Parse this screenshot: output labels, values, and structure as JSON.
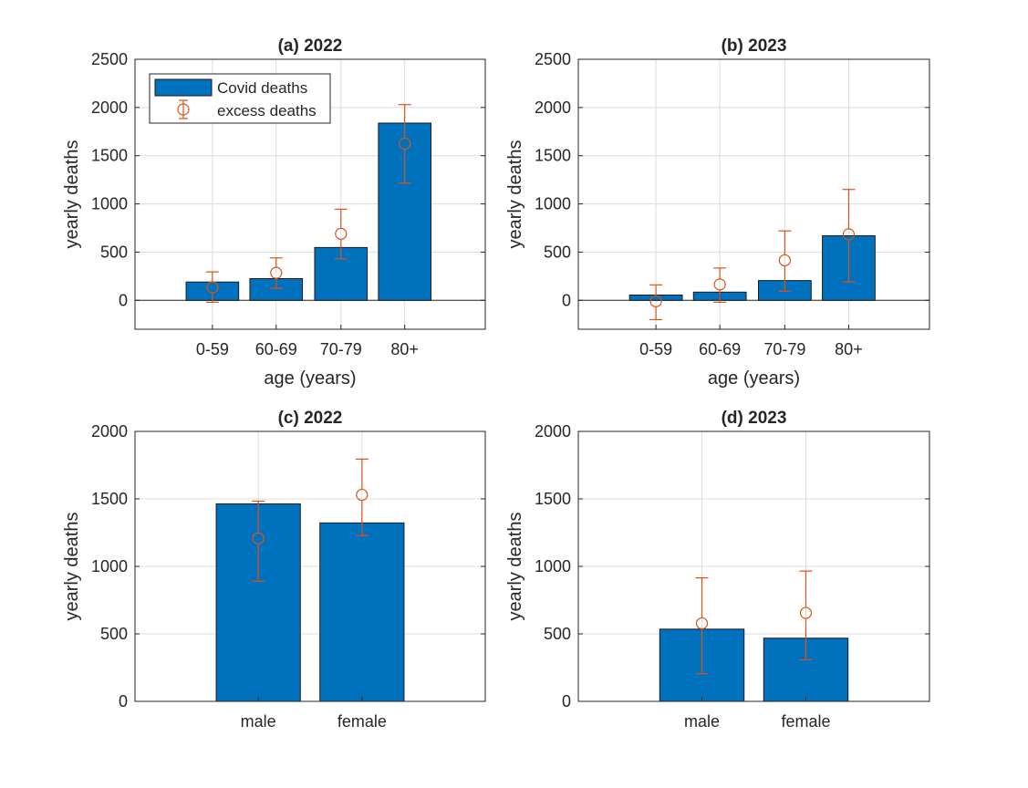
{
  "colors": {
    "bar": "#0072bd",
    "error": "#d95319"
  },
  "legend": {
    "bar_label": "Covid deaths",
    "error_label": "excess deaths",
    "placement": "top-left"
  },
  "chart_data": [
    {
      "type": "bar",
      "title": "(a) 2022",
      "xlabel": "age (years)",
      "ylabel": "yearly deaths",
      "categories": [
        "0-59",
        "60-69",
        "70-79",
        "80+"
      ],
      "ylim": [
        -300,
        2500
      ],
      "yticks": [
        0,
        500,
        1000,
        1500,
        2000,
        2500
      ],
      "grid": true,
      "show_legend": true,
      "series": [
        {
          "name": "Covid deaths",
          "values": [
            190,
            225,
            548,
            1838
          ]
        },
        {
          "name": "excess deaths",
          "kind": "errorbar",
          "values": [
            135,
            285,
            690,
            1625
          ],
          "lower": [
            -20,
            125,
            430,
            1215
          ],
          "upper": [
            295,
            440,
            945,
            2030
          ]
        }
      ]
    },
    {
      "type": "bar",
      "title": "(b) 2023",
      "xlabel": "age (years)",
      "ylabel": "yearly deaths",
      "categories": [
        "0-59",
        "60-69",
        "70-79",
        "80+"
      ],
      "ylim": [
        -300,
        2500
      ],
      "yticks": [
        0,
        500,
        1000,
        1500,
        2000,
        2500
      ],
      "grid": true,
      "show_legend": false,
      "series": [
        {
          "name": "Covid deaths",
          "values": [
            55,
            85,
            205,
            670
          ]
        },
        {
          "name": "excess deaths",
          "kind": "errorbar",
          "values": [
            -10,
            165,
            415,
            685
          ],
          "lower": [
            -200,
            -20,
            95,
            190
          ],
          "upper": [
            160,
            335,
            720,
            1150
          ]
        }
      ]
    },
    {
      "type": "bar",
      "title": "(c) 2022",
      "xlabel": "",
      "ylabel": "yearly deaths",
      "categories": [
        "male",
        "female"
      ],
      "ylim": [
        0,
        2000
      ],
      "yticks": [
        0,
        500,
        1000,
        1500,
        2000
      ],
      "grid": true,
      "show_legend": false,
      "series": [
        {
          "name": "Covid deaths",
          "values": [
            1463,
            1322
          ]
        },
        {
          "name": "excess deaths",
          "kind": "errorbar",
          "values": [
            1208,
            1530
          ],
          "lower": [
            890,
            1228
          ],
          "upper": [
            1483,
            1795
          ]
        }
      ]
    },
    {
      "type": "bar",
      "title": "(d) 2023",
      "xlabel": "",
      "ylabel": "yearly deaths",
      "categories": [
        "male",
        "female"
      ],
      "ylim": [
        0,
        2000
      ],
      "yticks": [
        0,
        500,
        1000,
        1500,
        2000
      ],
      "grid": true,
      "show_legend": false,
      "series": [
        {
          "name": "Covid deaths",
          "values": [
            535,
            468
          ]
        },
        {
          "name": "excess deaths",
          "kind": "errorbar",
          "values": [
            578,
            655
          ],
          "lower": [
            205,
            308
          ],
          "upper": [
            915,
            965
          ]
        }
      ]
    }
  ]
}
